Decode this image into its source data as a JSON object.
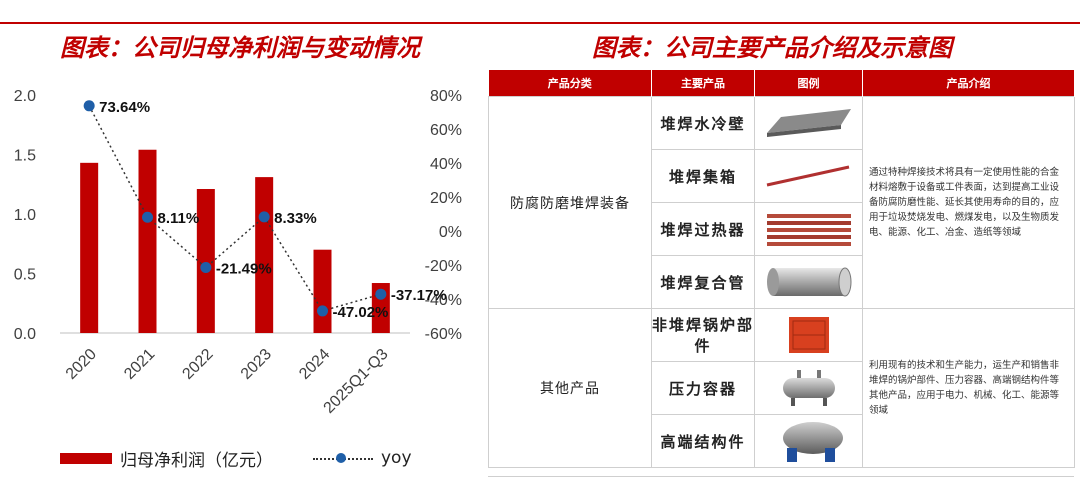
{
  "left_title": "图表：公司归母净利润与变动情况",
  "right_title": "图表：公司主要产品介绍及示意图",
  "chart_data": {
    "type": "bar",
    "title": "",
    "categories": [
      "2020",
      "2021",
      "2022",
      "2023",
      "2024",
      "2025Q1-Q3"
    ],
    "series": [
      {
        "name": "归母净利润（亿元）",
        "type": "bar",
        "axis": "left",
        "values": [
          1.43,
          1.54,
          1.21,
          1.31,
          0.7,
          0.42
        ],
        "color": "#c00000"
      },
      {
        "name": "yoy",
        "type": "line",
        "axis": "right",
        "values": [
          73.64,
          8.11,
          -21.49,
          8.33,
          -47.02,
          -37.17
        ],
        "color": "#1f5fa8",
        "labels": [
          "73.64%",
          "8.11%",
          "-21.49%",
          "8.33%",
          "-47.02%",
          "-37.17%"
        ]
      }
    ],
    "y_left": {
      "min": 0,
      "max": 2.0,
      "ticks": [
        "0.0",
        "0.5",
        "1.0",
        "1.5",
        "2.0"
      ],
      "tick_values": [
        0,
        0.5,
        1.0,
        1.5,
        2.0
      ]
    },
    "y_right": {
      "min": -60,
      "max": 80,
      "ticks": [
        "-60%",
        "-40%",
        "-20%",
        "0%",
        "20%",
        "40%",
        "60%",
        "80%"
      ],
      "tick_values": [
        -60,
        -40,
        -20,
        0,
        20,
        40,
        60,
        80
      ]
    },
    "grid": false,
    "legend_position": "bottom"
  },
  "table": {
    "headers": [
      "产品分类",
      "主要产品",
      "图例",
      "产品介绍"
    ],
    "groups": [
      {
        "category": "防腐防磨堆焊装备",
        "products": [
          "堆焊水冷壁",
          "堆焊集箱",
          "堆焊过热器",
          "堆焊复合管"
        ],
        "icons": [
          "water-wall-panel-icon",
          "header-pipe-icon",
          "superheater-coil-icon",
          "composite-pipe-icon"
        ],
        "intro": "通过特种焊接技术将具有一定使用性能的合金材料熔敷于设备或工件表面，达到提高工业设备防腐防磨性能、延长其使用寿命的目的，应用于垃圾焚烧发电、燃煤发电，以及生物质发电、能源、化工、冶金、造纸等领域"
      },
      {
        "category": "其他产品",
        "products": [
          "非堆焊锅炉部件",
          "压力容器",
          "高端结构件"
        ],
        "icons": [
          "boiler-module-icon",
          "pressure-vessel-icon",
          "structural-part-icon"
        ],
        "intro": "利用现有的技术和生产能力，运生产和销售非堆焊的锅炉部件、压力容器、高端钢结构件等其他产品，应用于电力、机械、化工、能源等领域"
      }
    ]
  }
}
